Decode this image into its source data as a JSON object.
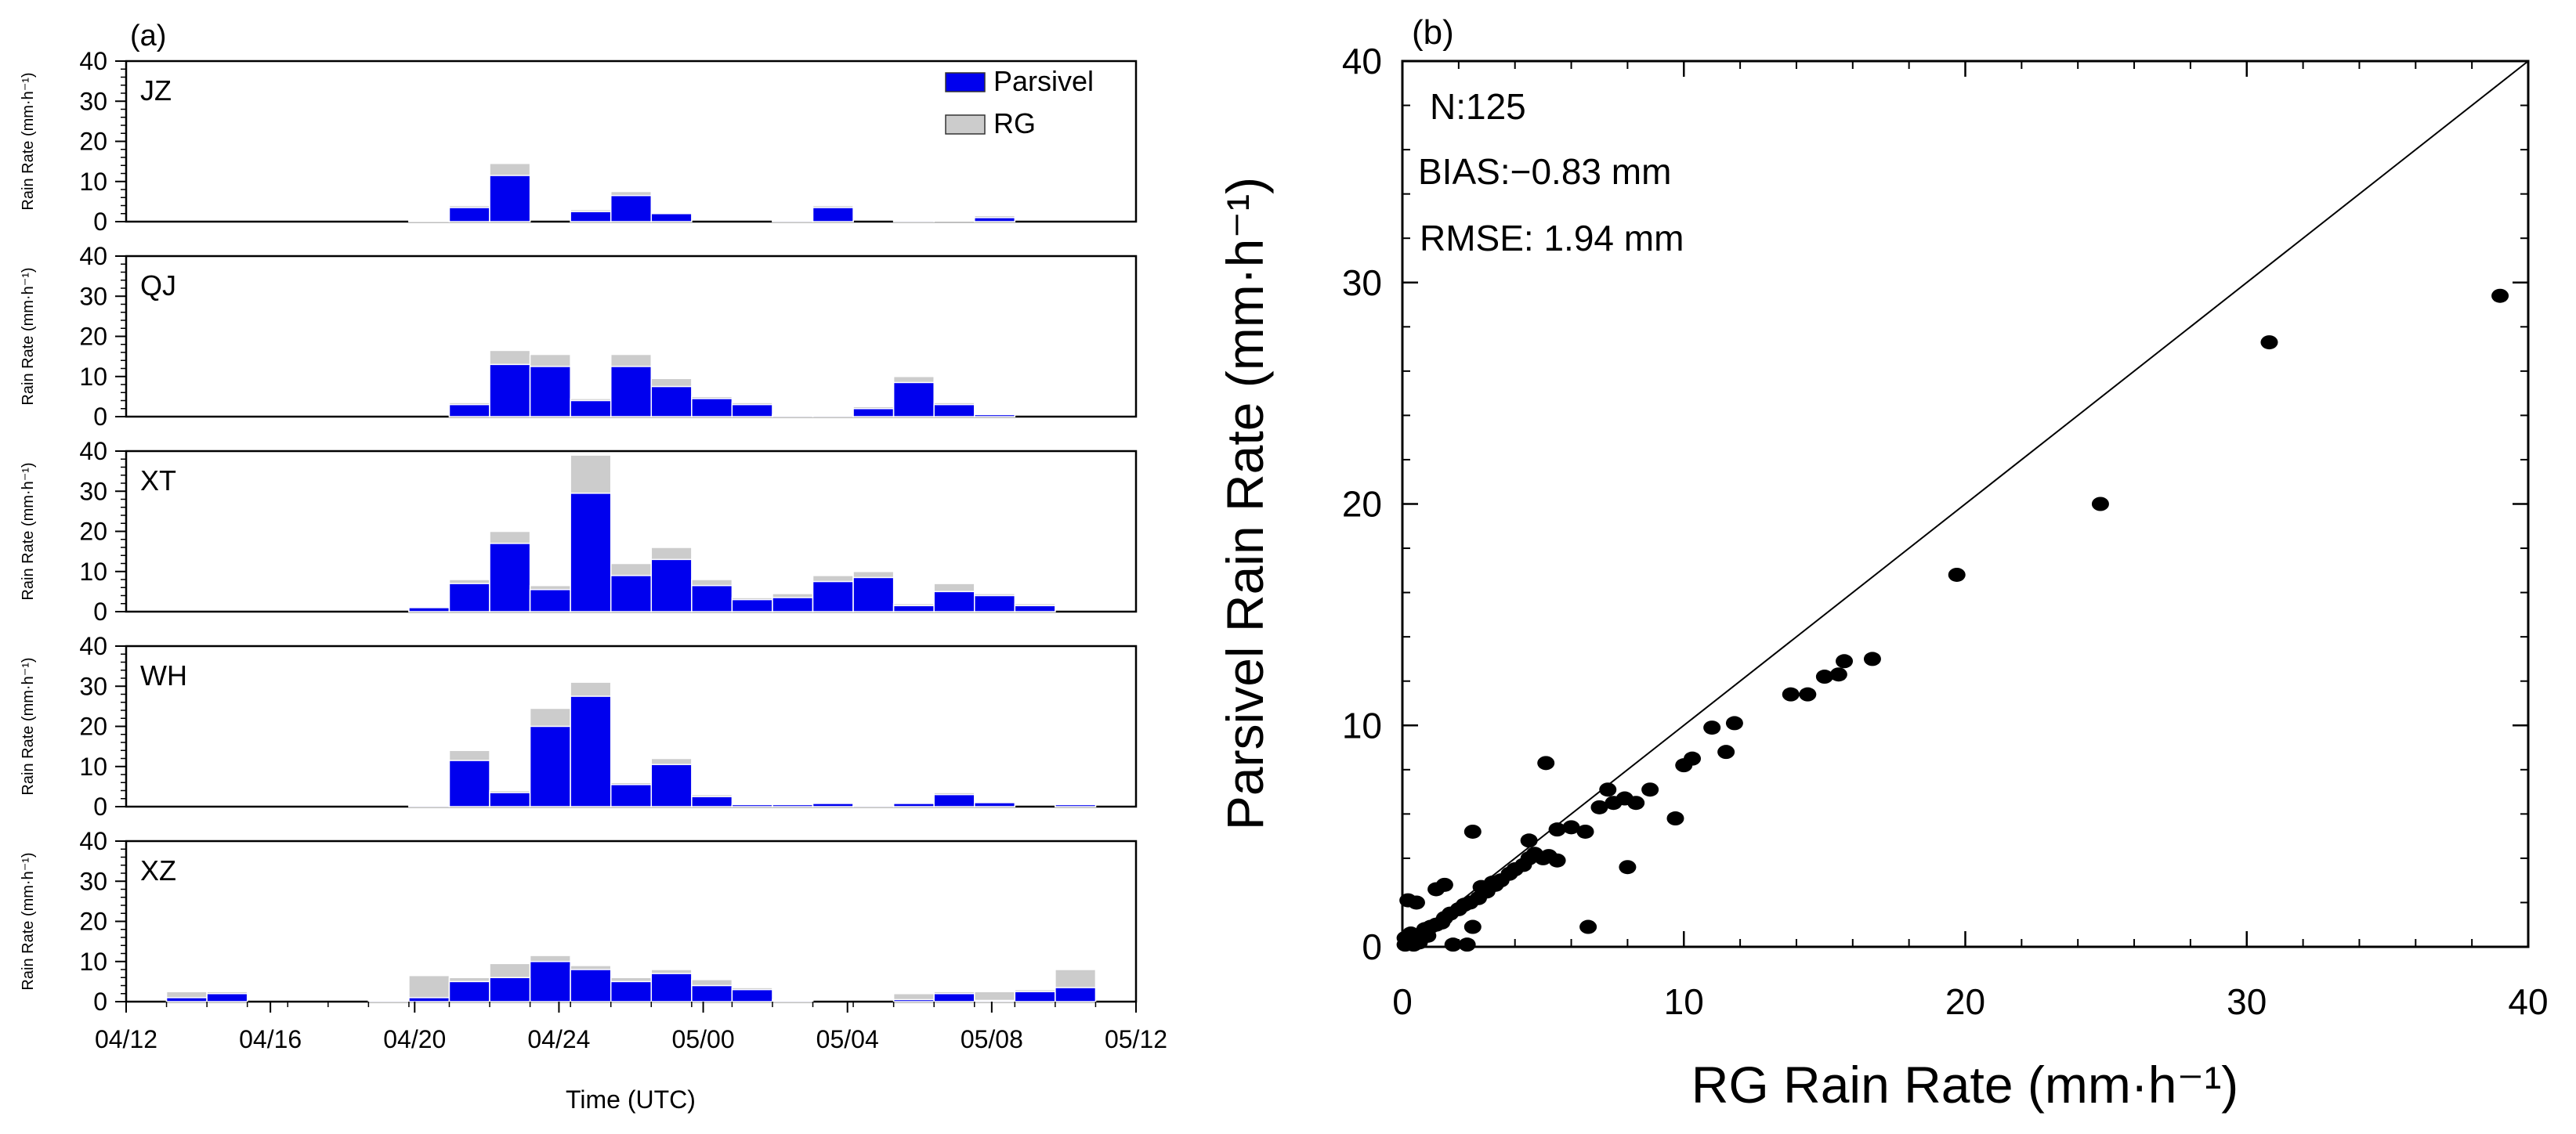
{
  "chart_data": [
    {
      "type": "bar",
      "panel_label": "(a)",
      "stacked_overlay": true,
      "xlabel": "Time (UTC)",
      "ylabel": "Rain Rate (mm·h⁻¹)",
      "ylim": [
        0,
        40
      ],
      "y_ticks": [
        "0",
        "10",
        "20",
        "30",
        "40"
      ],
      "x_tick_labels": [
        "04/12",
        "04/16",
        "04/20",
        "04/24",
        "05/00",
        "05/04",
        "05/08",
        "05/12"
      ],
      "bin_count": 25,
      "legend": [
        {
          "label": "Parsivel",
          "color": "#0000ee"
        },
        {
          "label": "RG",
          "color": "#cccccc"
        }
      ],
      "stations": [
        {
          "name": "JZ",
          "parsivel": [
            0,
            0,
            0,
            0,
            0,
            0,
            0,
            0.2,
            3.5,
            11.5,
            0,
            2.5,
            6.5,
            2,
            0,
            0,
            0.3,
            3.5,
            0,
            0.3,
            0,
            1,
            0,
            0,
            0
          ],
          "rg": [
            0,
            0,
            0,
            0,
            0,
            0,
            0,
            0.3,
            4,
            14.5,
            0,
            3,
            7.5,
            2.3,
            0,
            0,
            0.5,
            4,
            0,
            0.5,
            0.2,
            1.5,
            0,
            0,
            0
          ]
        },
        {
          "name": "QJ",
          "parsivel": [
            0,
            0,
            0,
            0,
            0,
            0,
            0,
            0,
            3,
            13,
            12.5,
            4,
            12.5,
            7.5,
            4.5,
            3,
            0.3,
            0.3,
            2,
            8.5,
            3,
            0.5,
            0,
            0,
            0
          ],
          "rg": [
            0,
            0,
            0,
            0,
            0,
            0,
            0,
            0,
            3.5,
            16.5,
            15.5,
            4.5,
            15.5,
            9.5,
            5,
            3.5,
            0.5,
            0.5,
            2.5,
            10,
            3.5,
            0.7,
            0,
            0,
            0
          ]
        },
        {
          "name": "XT",
          "parsivel": [
            0,
            0,
            0,
            0,
            0,
            0,
            0,
            1,
            7,
            17,
            5.5,
            29.5,
            9,
            13,
            6.5,
            3,
            3.5,
            7.5,
            8.5,
            1.5,
            5,
            4,
            1.5,
            0,
            0
          ],
          "rg": [
            0,
            0,
            0,
            0,
            0,
            0,
            0,
            1.2,
            8,
            20,
            6.5,
            39,
            12,
            16,
            8,
            3.5,
            4.5,
            9,
            10,
            2,
            7,
            4.5,
            2,
            0,
            0
          ]
        },
        {
          "name": "WH",
          "parsivel": [
            0,
            0,
            0,
            0,
            0,
            0,
            0,
            0.3,
            11.5,
            3.5,
            20,
            27.5,
            5.5,
            10.5,
            2.5,
            0.5,
            0.5,
            0.8,
            0.3,
            0.8,
            3,
            1,
            0,
            0.5,
            0
          ],
          "rg": [
            0,
            0,
            0,
            0,
            0,
            0,
            0,
            0.5,
            14,
            4,
            24.5,
            31,
            6,
            12,
            3,
            0.6,
            0.6,
            1,
            0.5,
            1,
            3.5,
            1.2,
            0,
            0.6,
            0
          ]
        },
        {
          "name": "XZ",
          "parsivel": [
            0,
            1,
            2,
            0,
            0,
            0,
            0.3,
            1,
            5,
            6,
            10,
            8,
            5,
            7,
            4,
            3,
            0.3,
            0,
            0,
            0.5,
            2,
            0.3,
            2.5,
            3.5,
            0
          ],
          "rg": [
            0,
            2.5,
            2.5,
            0,
            0,
            0,
            0.5,
            6.5,
            6,
            9.5,
            11.5,
            9,
            6,
            8,
            5.5,
            3.5,
            0.5,
            0,
            0,
            2,
            2.5,
            2.5,
            3,
            8,
            0
          ]
        }
      ]
    },
    {
      "type": "scatter",
      "panel_label": "(b)",
      "xlabel": "RG Rain Rate (mm·h⁻¹)",
      "ylabel": "Parsivel Rain Rate (mm·h⁻¹)",
      "xlim": [
        0,
        40
      ],
      "ylim": [
        0,
        40
      ],
      "x_ticks": [
        "0",
        "10",
        "20",
        "30",
        "40"
      ],
      "y_ticks": [
        "0",
        "10",
        "20",
        "30",
        "40"
      ],
      "stats": [
        "N:125",
        "BIAS:−0.83 mm",
        "RMSE: 1.94 mm"
      ],
      "reference_line": "1:1",
      "points": [
        [
          0.1,
          0.1
        ],
        [
          0.2,
          0.2
        ],
        [
          0.3,
          0.3
        ],
        [
          0.1,
          0.4
        ],
        [
          0.4,
          0.1
        ],
        [
          0.5,
          0.5
        ],
        [
          0.3,
          0.6
        ],
        [
          0.7,
          0.6
        ],
        [
          0.8,
          0.8
        ],
        [
          1.0,
          0.9
        ],
        [
          1.2,
          1.0
        ],
        [
          0.5,
          2.0
        ],
        [
          0.2,
          2.1
        ],
        [
          1.5,
          1.3
        ],
        [
          1.7,
          1.5
        ],
        [
          2.0,
          1.7
        ],
        [
          2.2,
          1.9
        ],
        [
          2.4,
          2.0
        ],
        [
          1.2,
          2.6
        ],
        [
          1.5,
          2.8
        ],
        [
          2.7,
          2.2
        ],
        [
          3.0,
          2.5
        ],
        [
          2.8,
          2.7
        ],
        [
          3.2,
          2.9
        ],
        [
          3.5,
          3.0
        ],
        [
          3.8,
          3.3
        ],
        [
          4.0,
          3.5
        ],
        [
          4.3,
          3.7
        ],
        [
          4.5,
          4.0
        ],
        [
          4.7,
          4.2
        ],
        [
          5.0,
          4.0
        ],
        [
          5.2,
          4.1
        ],
        [
          4.5,
          4.8
        ],
        [
          5.5,
          3.9
        ],
        [
          6.0,
          5.4
        ],
        [
          6.5,
          5.2
        ],
        [
          7.0,
          6.3
        ],
        [
          7.5,
          6.5
        ],
        [
          7.9,
          6.7
        ],
        [
          8.3,
          6.5
        ],
        [
          5.5,
          5.3
        ],
        [
          7.3,
          7.1
        ],
        [
          8.8,
          7.1
        ],
        [
          9.7,
          5.8
        ],
        [
          10.0,
          8.2
        ],
        [
          10.3,
          8.5
        ],
        [
          11.0,
          9.9
        ],
        [
          11.5,
          8.8
        ],
        [
          11.8,
          10.1
        ],
        [
          8.0,
          3.6
        ],
        [
          6.6,
          0.9
        ],
        [
          2.5,
          0.9
        ],
        [
          1.8,
          0.1
        ],
        [
          2.3,
          0.1
        ],
        [
          2.5,
          5.2
        ],
        [
          5.1,
          8.3
        ],
        [
          13.8,
          11.4
        ],
        [
          14.4,
          11.4
        ],
        [
          15.0,
          12.2
        ],
        [
          15.5,
          12.3
        ],
        [
          15.7,
          12.9
        ],
        [
          16.7,
          13.0
        ],
        [
          19.7,
          16.8
        ],
        [
          24.8,
          20.0
        ],
        [
          30.8,
          27.3
        ],
        [
          39.0,
          29.4
        ],
        [
          0.6,
          0.2
        ],
        [
          0.9,
          0.5
        ],
        [
          1.4,
          1.1
        ],
        [
          3.3,
          2.8
        ]
      ]
    }
  ]
}
